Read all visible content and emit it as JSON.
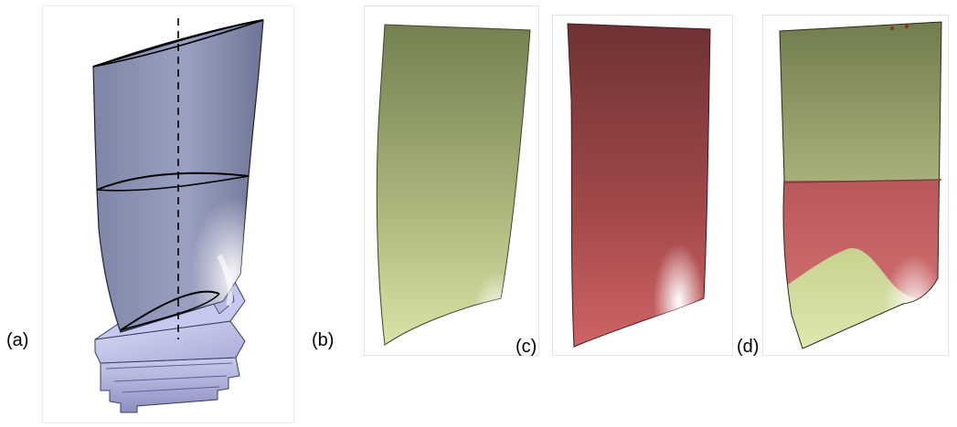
{
  "figure": {
    "labels": {
      "a": "(a)",
      "b": "(b)",
      "c": "(c)",
      "d": "(d)"
    },
    "colors": {
      "blade_gray_blue": "#8a8fb0",
      "blade_highlight": "#e7e8f6",
      "platform_lavender": "#c3c6ee",
      "surface_olive": "#7d8a57",
      "surface_olive_light": "#d9e3a6",
      "surface_red": "#7a3a3d",
      "surface_red_light": "#d66b6e",
      "outline": "#111111"
    }
  }
}
